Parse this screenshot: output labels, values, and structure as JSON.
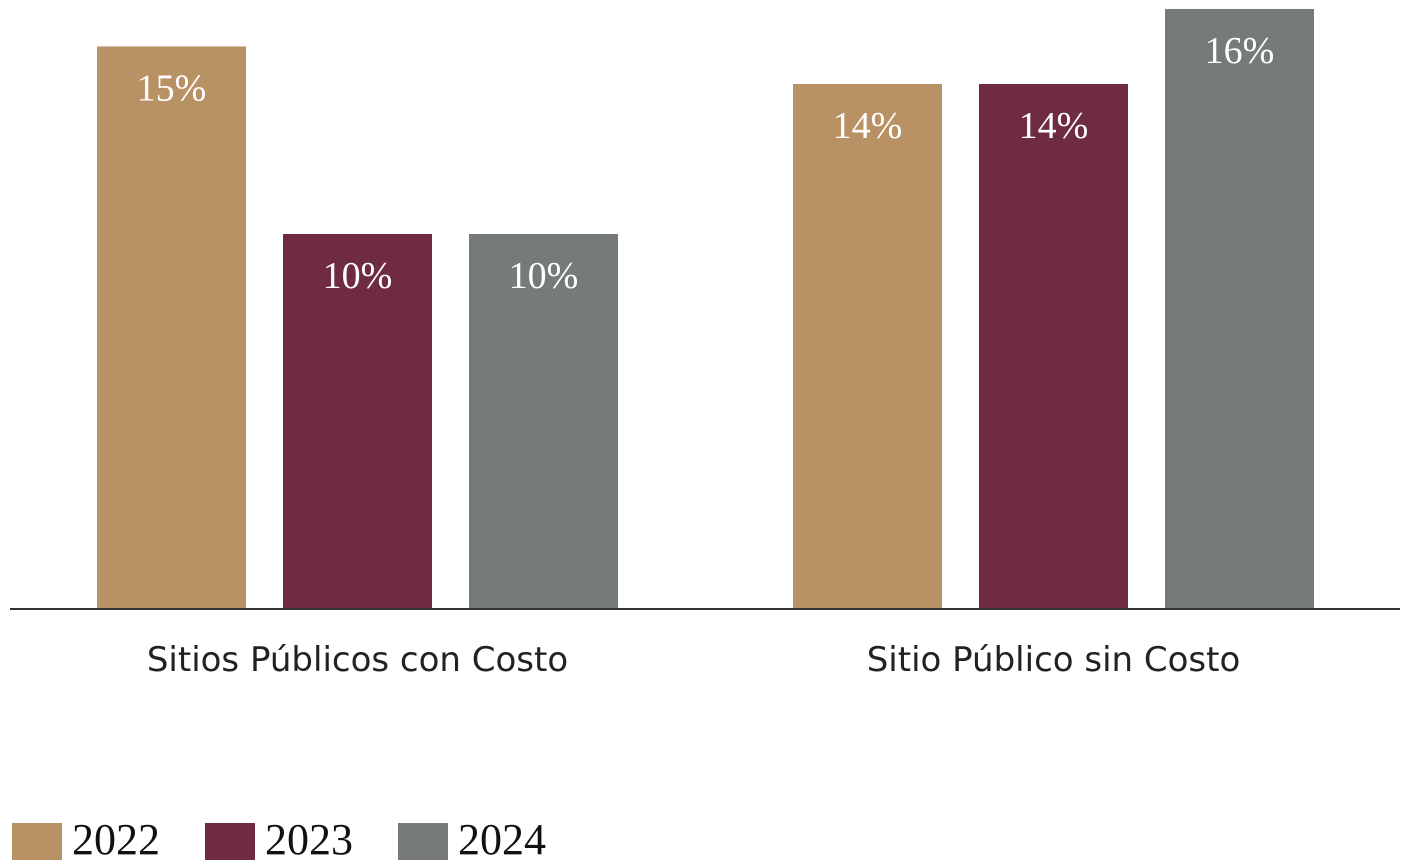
{
  "chart_data": {
    "type": "bar",
    "categories": [
      "Sitios Públicos con Costo",
      "Sitio Público sin Costo"
    ],
    "series": [
      {
        "name": "2022",
        "color": "#b89264",
        "values": [
          15,
          14
        ],
        "value_labels": [
          "15%",
          "14%"
        ]
      },
      {
        "name": "2023",
        "color": "#6e2b43",
        "values": [
          10,
          14
        ],
        "value_labels": [
          "10%",
          "14%"
        ]
      },
      {
        "name": "2024",
        "color": "#767a7b",
        "values": [
          10,
          16
        ],
        "value_labels": [
          "10%",
          "16%"
        ]
      }
    ],
    "ylim": [
      0,
      16
    ]
  }
}
